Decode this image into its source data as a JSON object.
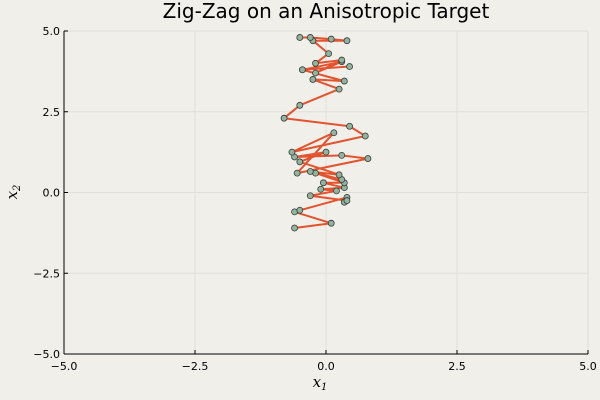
{
  "chart_data": {
    "type": "line",
    "title": "Zig-Zag on an Anisotropic Target",
    "xlabel": "x",
    "xlabel_subscript": "1",
    "ylabel": "x",
    "ylabel_subscript": "2",
    "xlim": [
      -5,
      5
    ],
    "ylim": [
      -5,
      5
    ],
    "xticks": [
      -5,
      -2.5,
      0,
      2.5,
      5
    ],
    "yticks": [
      -5,
      -2.5,
      0,
      2.5,
      5
    ],
    "xtick_labels": [
      "−5.0",
      "−2.5",
      "0.0",
      "2.5",
      "5.0"
    ],
    "ytick_labels": [
      "−5.0",
      "−2.5",
      "0.0",
      "2.5",
      "5.0"
    ],
    "grid": true,
    "legend": "none",
    "colors": {
      "background": "#f0efea",
      "line": "#e4532d",
      "marker_fill": "#8fb59f",
      "marker_edge": "#3a3a3a",
      "grid": "#e0dfd9",
      "axis": "#000000"
    },
    "series": [
      {
        "x": [
          -0.6,
          0.1,
          -0.6,
          -0.5,
          0.4,
          0.35,
          0.4,
          -0.3,
          0.2,
          -0.1,
          0.35,
          -0.05,
          0.35,
          -0.2,
          0.3,
          -0.3,
          0.25,
          -0.5,
          0.0,
          -0.6,
          0.3,
          0.8,
          -0.55,
          0.15,
          -0.65,
          0.75,
          0.45,
          -0.8,
          -0.5,
          0.25,
          -0.25,
          0.35,
          -0.45,
          0.45,
          -0.45,
          0.3,
          -0.2,
          0.3,
          -0.2,
          0.05,
          -0.25,
          0.4,
          0.1,
          -0.3,
          -0.5
        ],
        "y": [
          -1.1,
          -0.95,
          -0.6,
          -0.55,
          -0.15,
          -0.3,
          -0.25,
          -0.1,
          0.05,
          0.1,
          0.15,
          0.3,
          0.3,
          0.6,
          0.4,
          0.65,
          0.55,
          0.95,
          1.25,
          1.1,
          1.15,
          1.05,
          0.6,
          1.85,
          1.25,
          1.75,
          2.05,
          2.3,
          2.7,
          3.2,
          3.5,
          3.45,
          3.8,
          3.9,
          3.8,
          4.05,
          3.7,
          4.1,
          4.0,
          4.3,
          4.7,
          4.7,
          4.75,
          4.8,
          4.8
        ]
      }
    ]
  }
}
